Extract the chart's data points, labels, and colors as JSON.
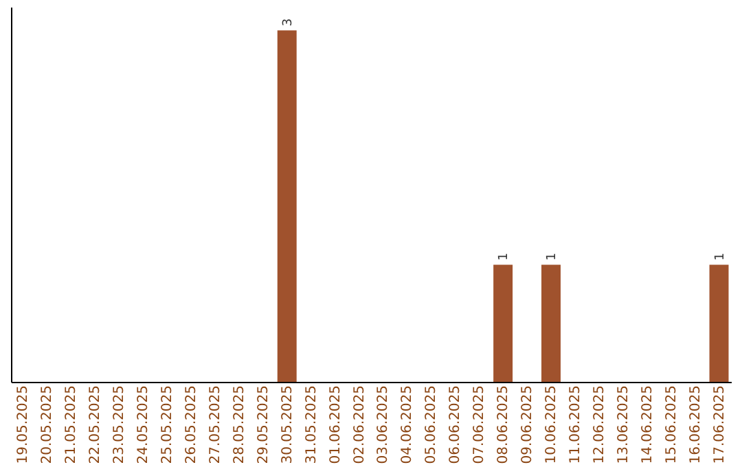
{
  "chart_data": {
    "type": "bar",
    "categories": [
      "19.05.2025",
      "20.05.2025",
      "21.05.2025",
      "22.05.2025",
      "23.05.2025",
      "24.05.2025",
      "25.05.2025",
      "26.05.2025",
      "27.05.2025",
      "28.05.2025",
      "29.05.2025",
      "30.05.2025",
      "31.05.2025",
      "01.06.2025",
      "02.06.2025",
      "03.06.2025",
      "04.06.2025",
      "05.06.2025",
      "06.06.2025",
      "07.06.2025",
      "08.06.2025",
      "09.06.2025",
      "10.06.2025",
      "11.06.2025",
      "12.06.2025",
      "13.06.2025",
      "14.06.2025",
      "15.06.2025",
      "16.06.2025",
      "17.06.2025"
    ],
    "values": [
      0,
      0,
      0,
      0,
      0,
      0,
      0,
      0,
      0,
      0,
      0,
      3,
      0,
      0,
      0,
      0,
      0,
      0,
      0,
      0,
      1,
      0,
      1,
      0,
      0,
      0,
      0,
      0,
      0,
      1
    ],
    "value_labels": [
      null,
      null,
      null,
      null,
      null,
      null,
      null,
      null,
      null,
      null,
      null,
      "3",
      null,
      null,
      null,
      null,
      null,
      null,
      null,
      null,
      "1",
      null,
      "1",
      null,
      null,
      null,
      null,
      null,
      null,
      "1"
    ],
    "color": "#a0522d",
    "ylim": [
      0,
      3.2
    ],
    "tick_labels": "x",
    "grid": false
  }
}
